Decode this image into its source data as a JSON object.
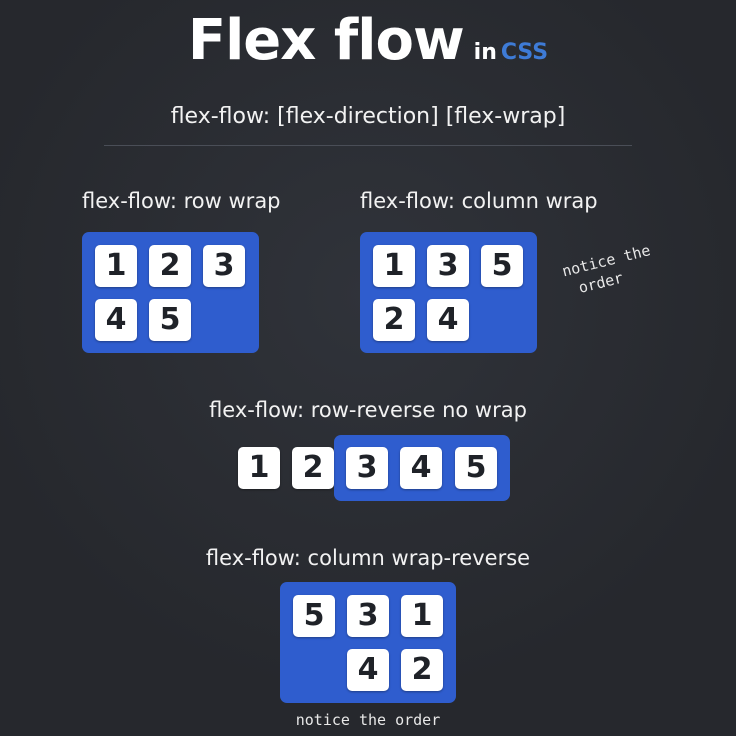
{
  "header": {
    "title": "Flex flow",
    "in_text": "in",
    "css_text": "CSS",
    "css_color": "#3e7bd6"
  },
  "syntax": "flex-flow: [flex-direction] [flex-wrap]",
  "accent_color": "#2f5dce",
  "examples": {
    "row_wrap": {
      "label": "flex-flow: row wrap",
      "items": [
        "1",
        "2",
        "3",
        "4",
        "5"
      ]
    },
    "column_wrap": {
      "label": "flex-flow: column wrap",
      "items": [
        "1",
        "3",
        "5",
        "2",
        "4"
      ],
      "note_line1": "notice the",
      "note_line2": "order"
    },
    "row_reverse": {
      "label": "flex-flow: row-reverse no wrap",
      "items": [
        "1",
        "2",
        "3",
        "4",
        "5"
      ]
    },
    "column_wrap_reverse": {
      "label": "flex-flow: column wrap-reverse",
      "items": [
        "5",
        "3",
        "1",
        "4",
        "2"
      ],
      "note": "notice the order"
    }
  }
}
